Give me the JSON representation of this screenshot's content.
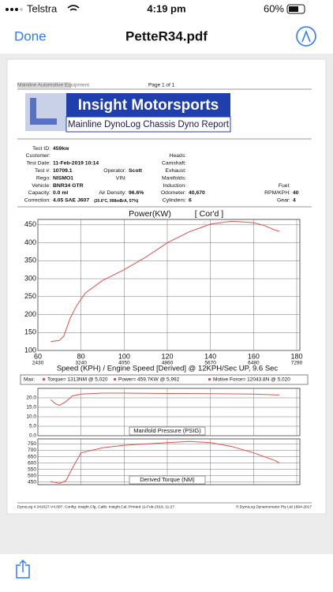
{
  "status_bar": {
    "carrier": "Telstra",
    "time": "4:19 pm",
    "battery": "60%"
  },
  "nav": {
    "done": "Done",
    "title": "PetteR34.pdf"
  },
  "report": {
    "header_left": "Mainline Automotive Equipment",
    "header_page": "Page 1 of 1",
    "brand": "Insight Motorsports",
    "subtitle": "Mainline DynoLog Chassis Dyno Report",
    "info_left": [
      [
        {
          "label": "Test ID:",
          "value": "459kw"
        }
      ],
      [
        {
          "label": "Customer:"
        }
      ],
      [
        {
          "label": "Test Date:",
          "value": "11-Feb-2019 10:14"
        }
      ],
      [
        {
          "label": "Test #:",
          "value": "10709.1"
        },
        {
          "label": "Operator:",
          "value": "Scott"
        }
      ],
      [
        {
          "label": "Rego:",
          "value": "NISMO1"
        },
        {
          "label": "VIN:"
        }
      ],
      [
        {
          "label": "Vehicle:",
          "value": "BNR34 GTR"
        }
      ],
      [
        {
          "label": "Capacity:",
          "value": "0.0 ml"
        },
        {
          "label": "Air Density:",
          "value": "96.6%"
        }
      ],
      [
        {
          "label": "Correction:",
          "value": "4.05 SAE J607",
          "note": "(20.6°C, 998mBrA, 57%)"
        }
      ]
    ],
    "info_right": [
      [
        {
          "label": "Heads:"
        }
      ],
      [
        {
          "label": "Camshaft:"
        }
      ],
      [
        {
          "label": "Exhaust:"
        }
      ],
      [
        {
          "label": "Manifolds:"
        }
      ],
      [
        {
          "label": "Induction:"
        },
        {
          "label": "Fuel:"
        }
      ],
      [
        {
          "label": "Odometer:",
          "value": "40,670"
        },
        {
          "label": "RPM/KPH:",
          "value": "40"
        }
      ],
      [
        {
          "label": "Cylinders:",
          "value": "6"
        },
        {
          "label": "Gear:",
          "value": "4"
        }
      ]
    ],
    "max_label": "Max:",
    "max": [
      "Torque= 1313NM @ 5,020",
      "Power= 459.7KW @ 5,992",
      "Motive Force= 12043.8N @ 5,020"
    ],
    "footer_left": "DynoLog 4 241027-V4.087, Config: Insight.Cfg, Calib: Insight.Cal, Printed 11-Feb-2019, 11:27",
    "footer_right": "© DynoLog Dynamometer Pty Ltd 1994-2017"
  },
  "charts": [
    {
      "type": "line",
      "title": "Power(KW)",
      "subtitle": "[ Cor'd ]",
      "xlabel": "Speed (KPH) / Engine Speed [Derived] @ 12KPH/Sec UP, 9.6 Sec",
      "xlim": [
        60,
        180
      ],
      "xticks": [
        60,
        80,
        100,
        120,
        140,
        160,
        180
      ],
      "show_xtick_labels": true,
      "x2ticks": [
        2430,
        3240,
        4050,
        4860,
        5670,
        6480,
        7290
      ],
      "ylim": [
        100,
        465
      ],
      "yticks": [
        100,
        150,
        200,
        250,
        300,
        350,
        400,
        450
      ],
      "series": [
        {
          "color": "#e05050",
          "x": [
            66,
            70,
            72,
            75,
            78,
            82,
            90,
            100,
            110,
            120,
            130,
            140,
            150,
            160,
            165,
            170,
            172
          ],
          "values": [
            125,
            128,
            140,
            190,
            225,
            260,
            295,
            325,
            360,
            400,
            430,
            452,
            460,
            456,
            448,
            435,
            432
          ]
        }
      ]
    },
    {
      "type": "line",
      "title": "Manifold Pressure (PSIG)",
      "xlim": [
        60,
        180
      ],
      "xticks": [
        60,
        80,
        100,
        120,
        140,
        160,
        180
      ],
      "show_xtick_labels": false,
      "ylim": [
        0,
        25
      ],
      "yticks": [
        {
          "value": 0,
          "label": "0.0"
        },
        {
          "value": 5,
          "label": "5.0"
        },
        {
          "value": 10,
          "label": "10.0"
        },
        {
          "value": 15,
          "label": "15.0"
        },
        {
          "value": 20,
          "label": "20.0"
        }
      ],
      "series": [
        {
          "color": "#e05050",
          "x": [
            66,
            68,
            70,
            73,
            76,
            80,
            90,
            100,
            120,
            140,
            160,
            172
          ],
          "values": [
            19,
            17,
            16,
            18,
            21,
            22,
            22.5,
            22.5,
            22.3,
            22.2,
            22,
            21.5
          ]
        }
      ]
    },
    {
      "type": "line",
      "title": "Derived Torque (NM)",
      "xlim": [
        60,
        180
      ],
      "xticks": [
        60,
        80,
        100,
        120,
        140,
        160,
        180
      ],
      "show_xtick_labels": false,
      "ylim": [
        430,
        790
      ],
      "yticks": [
        450,
        500,
        550,
        600,
        650,
        700,
        750
      ],
      "series": [
        {
          "color": "#e05050",
          "x": [
            66,
            70,
            73,
            76,
            80,
            90,
            100,
            120,
            130,
            140,
            150,
            160,
            170,
            172
          ],
          "values": [
            455,
            440,
            460,
            560,
            680,
            720,
            740,
            760,
            770,
            760,
            730,
            680,
            620,
            600
          ]
        }
      ]
    }
  ]
}
